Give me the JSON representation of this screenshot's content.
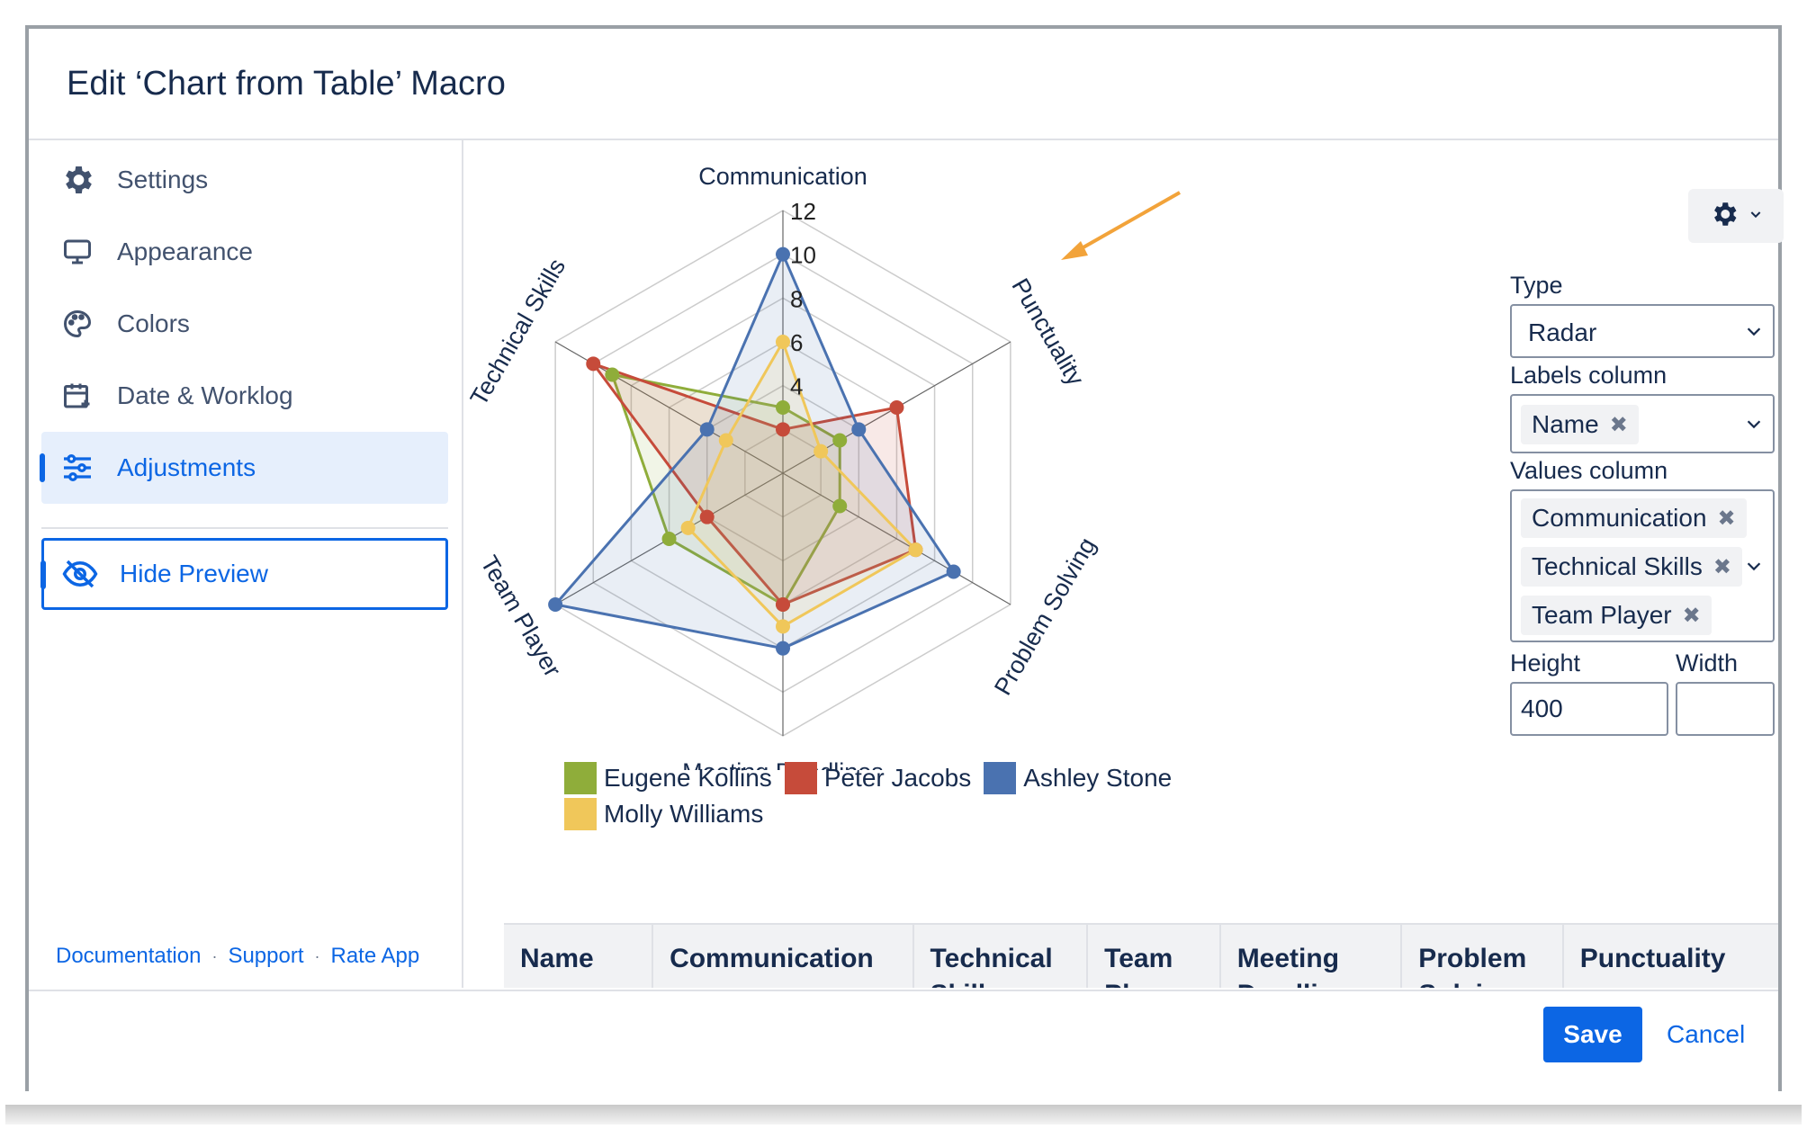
{
  "dialog": {
    "title": "Edit ‘Chart from Table’ Macro"
  },
  "sidebar": {
    "items": [
      {
        "label": "Settings",
        "icon": "gear-icon"
      },
      {
        "label": "Appearance",
        "icon": "monitor-icon"
      },
      {
        "label": "Colors",
        "icon": "palette-icon"
      },
      {
        "label": "Date & Worklog",
        "icon": "calendar-add-icon"
      },
      {
        "label": "Adjustments",
        "icon": "sliders-icon",
        "active": true
      }
    ],
    "hide_preview": {
      "label": "Hide Preview",
      "icon": "eye-off-icon"
    },
    "footer": {
      "documentation": "Documentation",
      "support": "Support",
      "rate": "Rate App",
      "sep": "·"
    }
  },
  "panel": {
    "type_label": "Type",
    "type_value": "Radar",
    "labels_column_label": "Labels column",
    "labels_column_tags": [
      "Name"
    ],
    "values_column_label": "Values column",
    "values_column_tags": [
      "Communication",
      "Technical Skills",
      "Team Player"
    ],
    "height_label": "Height",
    "height_value": "400",
    "width_label": "Width",
    "width_value": ""
  },
  "table": {
    "headers": [
      "Name",
      "Communication",
      "Technical\nSkills",
      "Team\nPlayer",
      "Meeting\nDeadlines",
      "Problem\nSolving",
      "Punctuality"
    ]
  },
  "buttons": {
    "save": "Save",
    "cancel": "Cancel"
  },
  "colors": {
    "accent": "#0c66e4",
    "arrow": "#f2a33a"
  },
  "chart_data": {
    "type": "radar",
    "axes": [
      "Communication",
      "Punctuality",
      "Problem Solving",
      "Meeting Deadlines",
      "Team Player",
      "Technical Skills"
    ],
    "rlim": [
      0,
      12
    ],
    "ticks": [
      2,
      4,
      6,
      8,
      10,
      12
    ],
    "tick_labels": [
      "4",
      "6",
      "8",
      "10",
      "12"
    ],
    "grid": true,
    "legend_position": "bottom-left",
    "series": [
      {
        "name": "Eugene Kollins",
        "color": "#8fad3a",
        "values": [
          3,
          3,
          3,
          6,
          6,
          9
        ]
      },
      {
        "name": "Peter Jacobs",
        "color": "#c64b3a",
        "values": [
          2,
          6,
          7,
          6,
          4,
          10
        ]
      },
      {
        "name": "Ashley Stone",
        "color": "#4a72b0",
        "values": [
          10,
          4,
          9,
          8,
          12,
          4
        ]
      },
      {
        "name": "Molly Williams",
        "color": "#f0c75a",
        "values": [
          6,
          2,
          7,
          7,
          5,
          3
        ]
      }
    ]
  }
}
